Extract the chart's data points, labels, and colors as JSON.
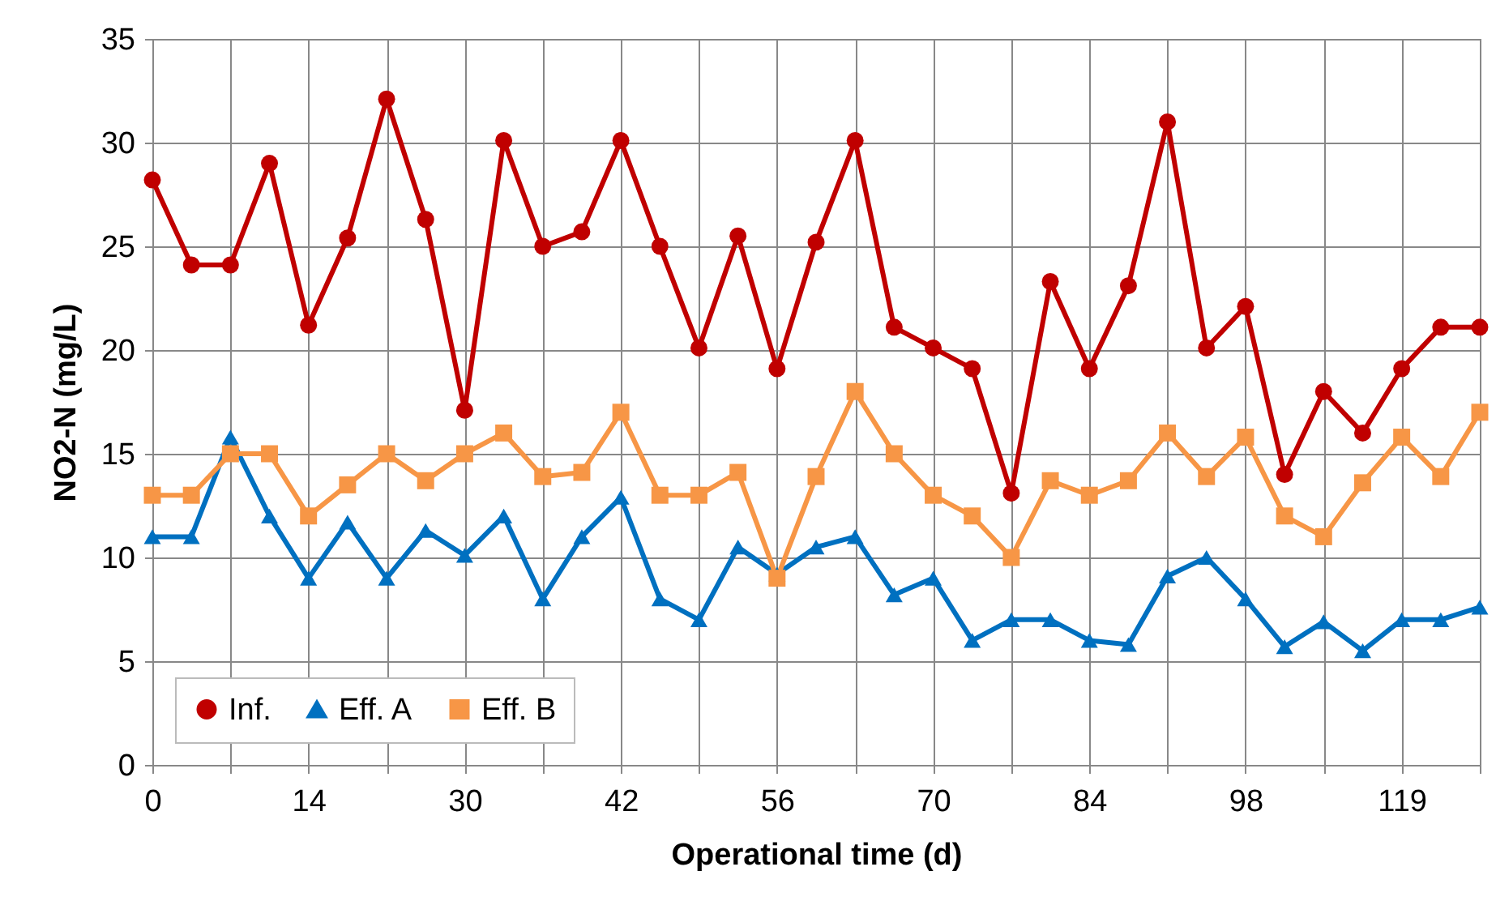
{
  "chart_data": {
    "type": "line",
    "xlabel": "Operational time (d)",
    "ylabel": "NO2-N (mg/L)",
    "categories": [
      "0",
      null,
      null,
      null,
      "14",
      null,
      null,
      null,
      "30",
      null,
      null,
      null,
      "42",
      null,
      null,
      null,
      "56",
      null,
      null,
      null,
      "70",
      null,
      null,
      null,
      "84",
      null,
      null,
      null,
      "98",
      null,
      null,
      null,
      "119",
      null,
      null
    ],
    "series": [
      {
        "name": "Inf.",
        "color": "#c00000",
        "marker": "circle",
        "values": [
          28.2,
          24.1,
          24.1,
          29,
          21.2,
          25.4,
          32.1,
          26.3,
          17.1,
          30.1,
          25,
          25.7,
          30.1,
          25,
          20.1,
          25.5,
          19.1,
          25.2,
          30.1,
          21.1,
          20.1,
          19.1,
          13.1,
          23.3,
          19.1,
          23.1,
          31,
          20.1,
          22.1,
          14,
          18,
          16,
          19.1,
          21.1,
          21.1
        ]
      },
      {
        "name": "Eff. A",
        "color": "#0070c0",
        "marker": "triangle",
        "values": [
          11,
          11,
          15.8,
          12,
          9,
          11.7,
          9,
          11.3,
          10.1,
          12,
          8,
          11,
          12.9,
          8,
          7,
          10.5,
          9.2,
          10.5,
          11,
          8.2,
          9,
          6,
          7,
          7,
          6,
          5.8,
          9.1,
          10,
          8,
          5.7,
          6.9,
          5.5,
          7,
          7,
          7.6
        ]
      },
      {
        "name": "Eff. B",
        "color": "#f79646",
        "marker": "square",
        "values": [
          13,
          13,
          15,
          15,
          12,
          13.5,
          15,
          13.7,
          15,
          16,
          13.9,
          14.1,
          17,
          13,
          13,
          14.1,
          9,
          13.9,
          18,
          15,
          13,
          12,
          10,
          13.7,
          13,
          13.7,
          16,
          13.9,
          15.8,
          12,
          11,
          13.6,
          15.8,
          13.9,
          17
        ]
      }
    ],
    "ylim": [
      0,
      35
    ],
    "yticks": [
      0,
      5,
      10,
      15,
      20,
      25,
      30,
      35
    ],
    "grid": true,
    "legend": "bottom left",
    "line_style": "solid"
  }
}
